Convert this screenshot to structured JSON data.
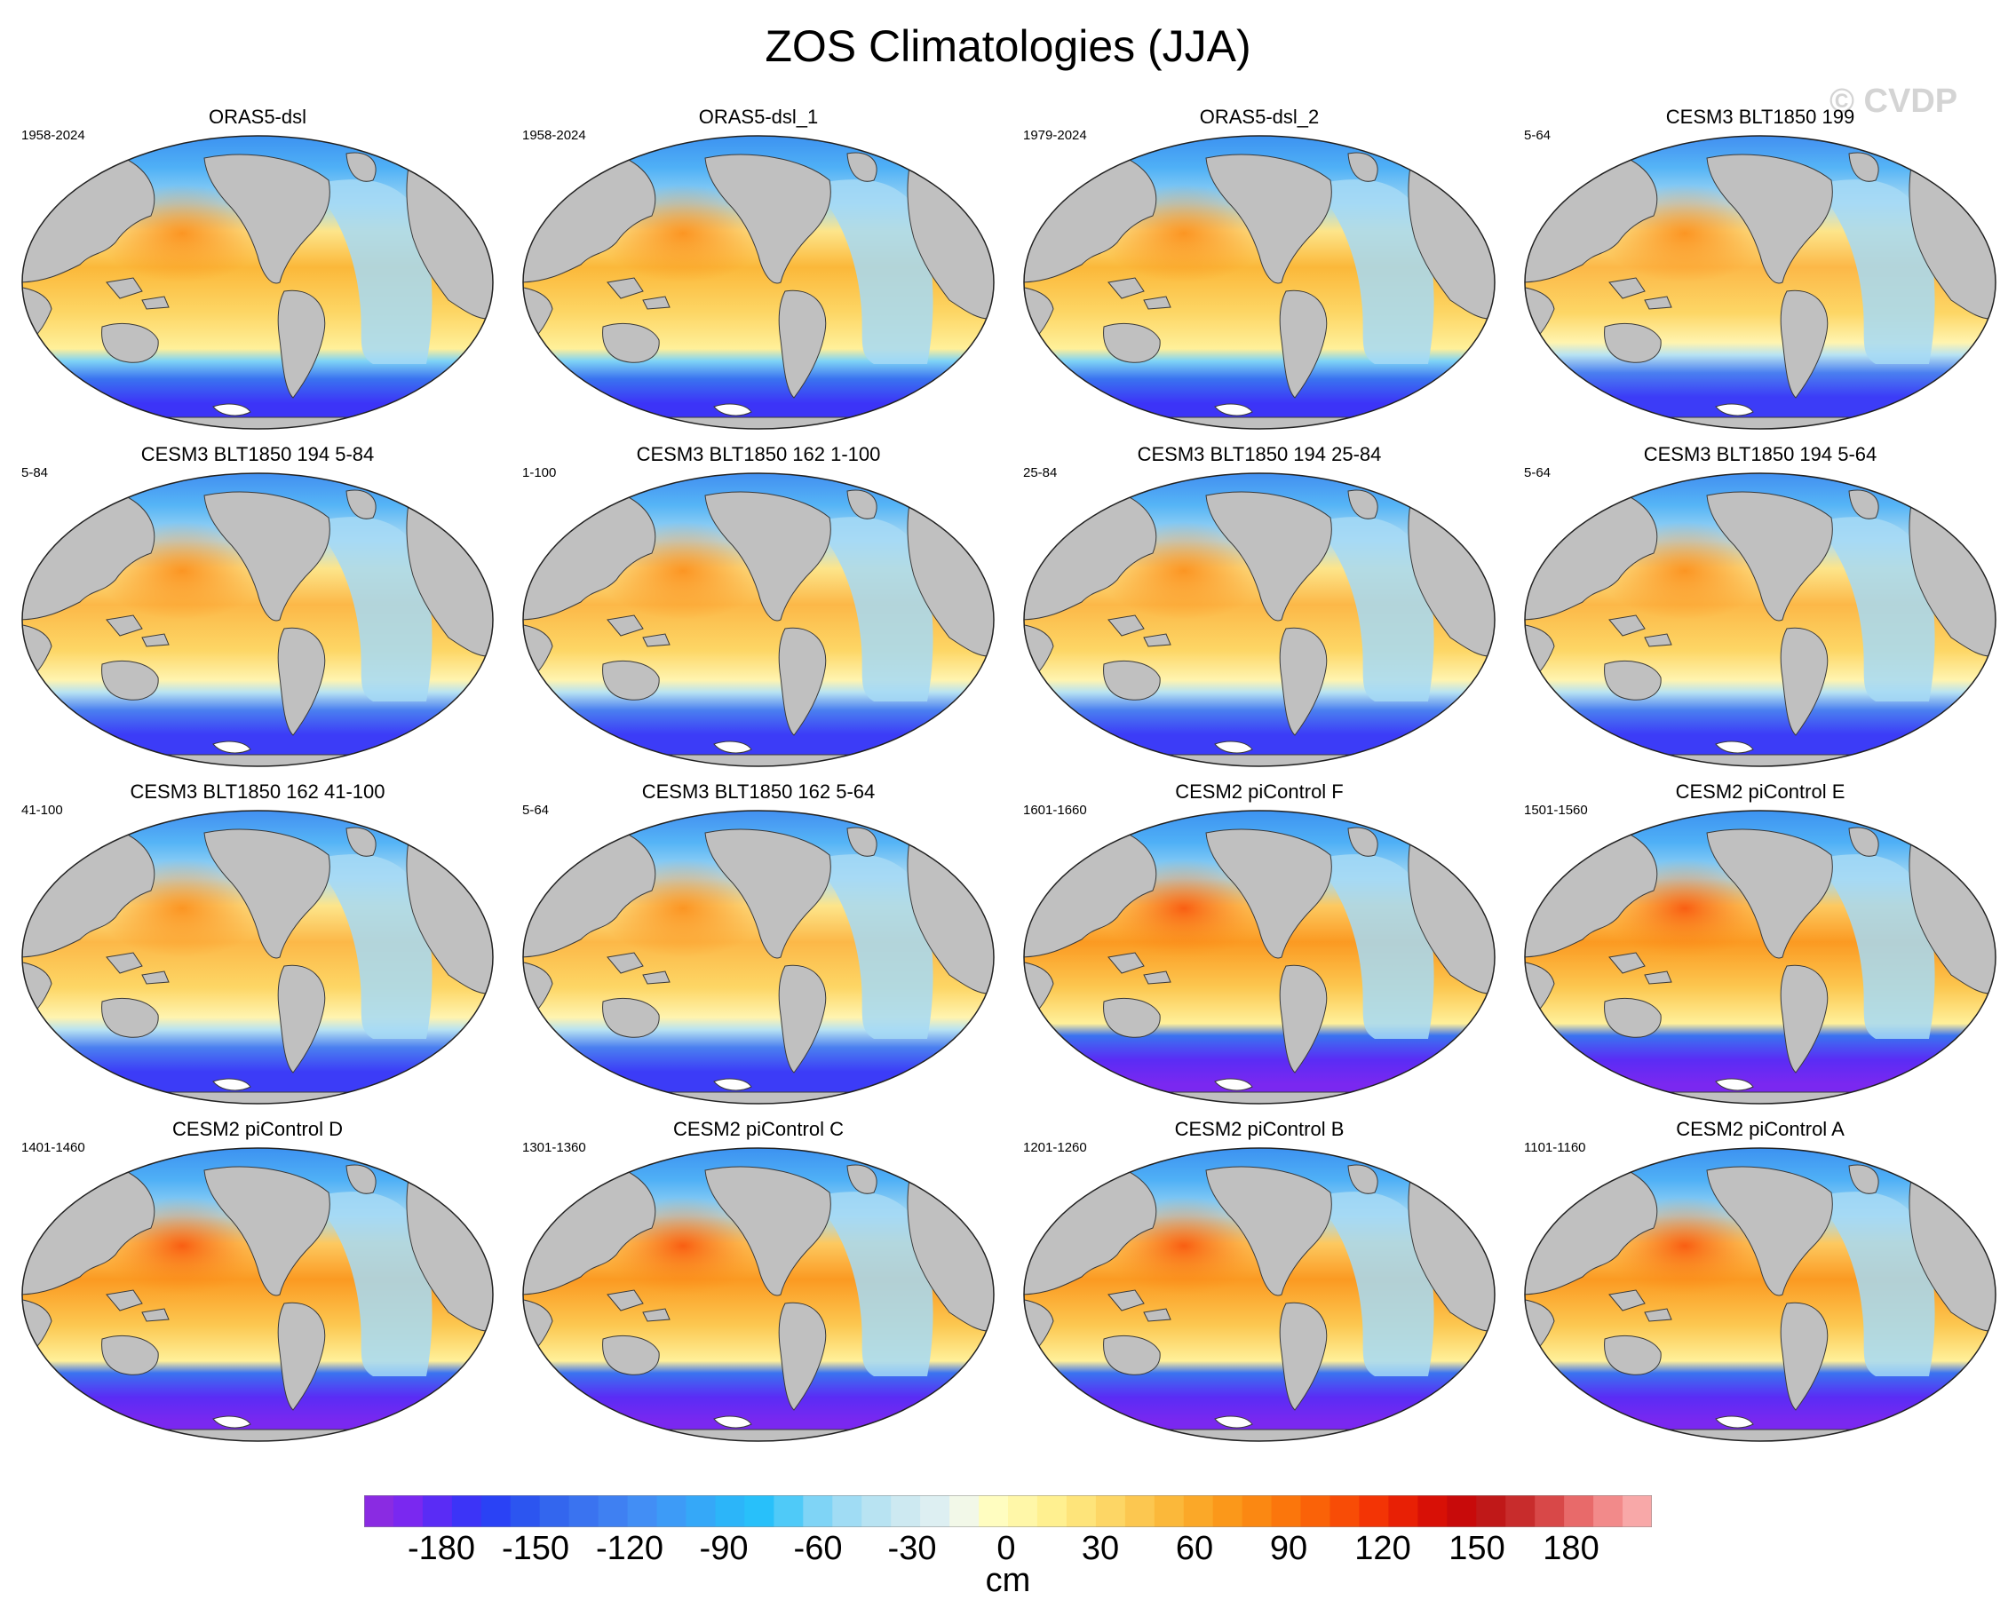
{
  "title": "ZOS Climatologies (JJA)",
  "watermark": "© CVDP",
  "panels": [
    {
      "title": "ORAS5-dsl",
      "years": "1958-2024",
      "style": "obs"
    },
    {
      "title": "ORAS5-dsl_1",
      "years": "1958-2024",
      "style": "obs"
    },
    {
      "title": "ORAS5-dsl_2",
      "years": "1979-2024",
      "style": "obs"
    },
    {
      "title": "CESM3 BLT1850 199",
      "years": "5-64",
      "style": "cesm3"
    },
    {
      "title": "CESM3 BLT1850 194 5-84",
      "years": "5-84",
      "style": "cesm3"
    },
    {
      "title": "CESM3 BLT1850 162 1-100",
      "years": "1-100",
      "style": "cesm3"
    },
    {
      "title": "CESM3 BLT1850 194 25-84",
      "years": "25-84",
      "style": "cesm3"
    },
    {
      "title": "CESM3 BLT1850 194 5-64",
      "years": "5-64",
      "style": "cesm3"
    },
    {
      "title": "CESM3 BLT1850 162 41-100",
      "years": "41-100",
      "style": "cesm3"
    },
    {
      "title": "CESM3 BLT1850 162 5-64",
      "years": "5-64",
      "style": "cesm3"
    },
    {
      "title": "CESM2 piControl F",
      "years": "1601-1660",
      "style": "cesm2"
    },
    {
      "title": "CESM2 piControl E",
      "years": "1501-1560",
      "style": "cesm2"
    },
    {
      "title": "CESM2 piControl D",
      "years": "1401-1460",
      "style": "cesm2"
    },
    {
      "title": "CESM2 piControl C",
      "years": "1301-1360",
      "style": "cesm2"
    },
    {
      "title": "CESM2 piControl B",
      "years": "1201-1260",
      "style": "cesm2"
    },
    {
      "title": "CESM2 piControl A",
      "years": "1101-1160",
      "style": "cesm2"
    }
  ],
  "colorbar": {
    "units": "cm",
    "labels": [
      "-180",
      "-150",
      "-120",
      "-90",
      "-60",
      "-30",
      "0",
      "30",
      "60",
      "90",
      "120",
      "150",
      "180"
    ],
    "colors": [
      "#8a2be2",
      "#7a28f0",
      "#5a2cf5",
      "#3c34f7",
      "#2a42f5",
      "#2c55f0",
      "#3366ee",
      "#3a73f0",
      "#3f80f2",
      "#428ef5",
      "#3d9bf7",
      "#35a8f8",
      "#2cb5f9",
      "#28c0fa",
      "#4fcaf8",
      "#7fd4f6",
      "#a0dcf4",
      "#b8e3f2",
      "#cde9f1",
      "#ddeff2",
      "#f2f8e8",
      "#fffdc0",
      "#fff7a8",
      "#fff090",
      "#fee47a",
      "#fdd665",
      "#fcc750",
      "#fbb83a",
      "#fba828",
      "#fb981a",
      "#fb8812",
      "#fb760c",
      "#fa6208",
      "#f84c06",
      "#f33405",
      "#e82005",
      "#d81006",
      "#c80a0a",
      "#c01818",
      "#c82c2c",
      "#d84848",
      "#e86a6a",
      "#f28a8a",
      "#f8a8a8"
    ],
    "land_color": "#c0c0c0"
  }
}
